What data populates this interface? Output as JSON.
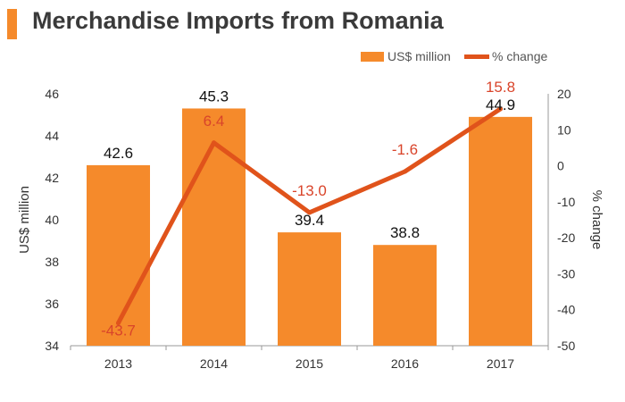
{
  "chart_data": {
    "type": "bar",
    "title": "Merchandise Imports from Romania",
    "categories": [
      "2013",
      "2014",
      "2015",
      "2016",
      "2017"
    ],
    "series": [
      {
        "name": "US$ million",
        "type": "bar",
        "axis": "left",
        "values": [
          42.6,
          45.3,
          39.4,
          38.8,
          44.9
        ],
        "labels": [
          "42.6",
          "45.3",
          "39.4",
          "38.8",
          "44.9"
        ]
      },
      {
        "name": "% change",
        "type": "line",
        "axis": "right",
        "values": [
          -43.7,
          6.4,
          -13.0,
          -1.6,
          15.8
        ],
        "labels": [
          "-43.7",
          "6.4",
          "-13.0",
          "-1.6",
          "15.8"
        ]
      }
    ],
    "y_left": {
      "label": "US$ million",
      "range": [
        34,
        46
      ],
      "ticks": [
        "34",
        "36",
        "38",
        "40",
        "42",
        "44",
        "46"
      ]
    },
    "y_right": {
      "label": "% change",
      "range": [
        -50,
        20
      ],
      "ticks": [
        "-50",
        "-40",
        "-30",
        "-20",
        "-10",
        "0",
        "10",
        "20"
      ]
    },
    "grid": false,
    "legend_position": "top-right",
    "colors": {
      "bar": "#f58a2b",
      "line": "#e0531b",
      "line_label": "#d9442a",
      "title_accent": "#f58a2b"
    }
  }
}
